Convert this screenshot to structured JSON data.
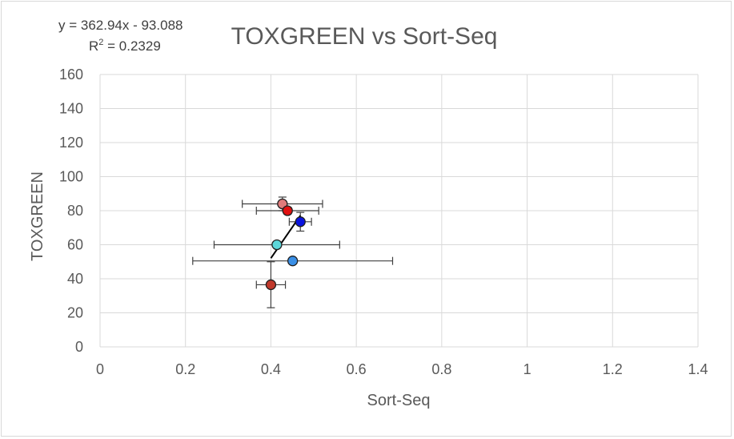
{
  "chart_data": {
    "type": "scatter",
    "title": "TOXGREEN vs Sort-Seq",
    "xlabel": "Sort-Seq",
    "ylabel": "TOXGREEN",
    "xlim": [
      0,
      1.4
    ],
    "ylim": [
      0,
      160
    ],
    "xticks": [
      0,
      0.2,
      0.4,
      0.6,
      0.8,
      1,
      1.2,
      1.4
    ],
    "xtick_labels": [
      "0",
      "0.2",
      "0.4",
      "0.6",
      "0.8",
      "1",
      "1.2",
      "1.4"
    ],
    "yticks": [
      0,
      20,
      40,
      60,
      80,
      100,
      120,
      140,
      160
    ],
    "ytick_labels": [
      "0",
      "20",
      "40",
      "60",
      "80",
      "100",
      "120",
      "140",
      "160"
    ],
    "grid": "vertical and horizontal",
    "points": [
      {
        "x": 0.427,
        "y": 84,
        "xerr": 0.094,
        "yerr": 4,
        "color": "#e07b7b"
      },
      {
        "x": 0.439,
        "y": 80,
        "xerr": 0.073,
        "yerr": 2,
        "color": "#e01010"
      },
      {
        "x": 0.469,
        "y": 73.5,
        "xerr": 0.026,
        "yerr": 5.5,
        "color": "#0a14e0"
      },
      {
        "x": 0.414,
        "y": 60,
        "xerr": 0.147,
        "yerr": 1,
        "color": "#5cd6d9"
      },
      {
        "x": 0.451,
        "y": 50.5,
        "xerr": 0.234,
        "yerr": 1,
        "color": "#3a8fe6"
      },
      {
        "x": 0.4,
        "y": 36.5,
        "xerr": 0.034,
        "yerr": 13.5,
        "color": "#c0392b"
      }
    ],
    "trendline": {
      "slope": 362.94,
      "intercept": -93.088,
      "x_from": 0.4,
      "x_to": 0.469
    },
    "equation_line1": "y = 362.94x  - 93.088",
    "r2_prefix": "R",
    "r2_exp": "2",
    "r2_value": " = 0.2329",
    "colors": {
      "grid": "#d9d9d9",
      "text": "#595959",
      "errorbar": "#404040",
      "trendline": "#000000"
    }
  }
}
